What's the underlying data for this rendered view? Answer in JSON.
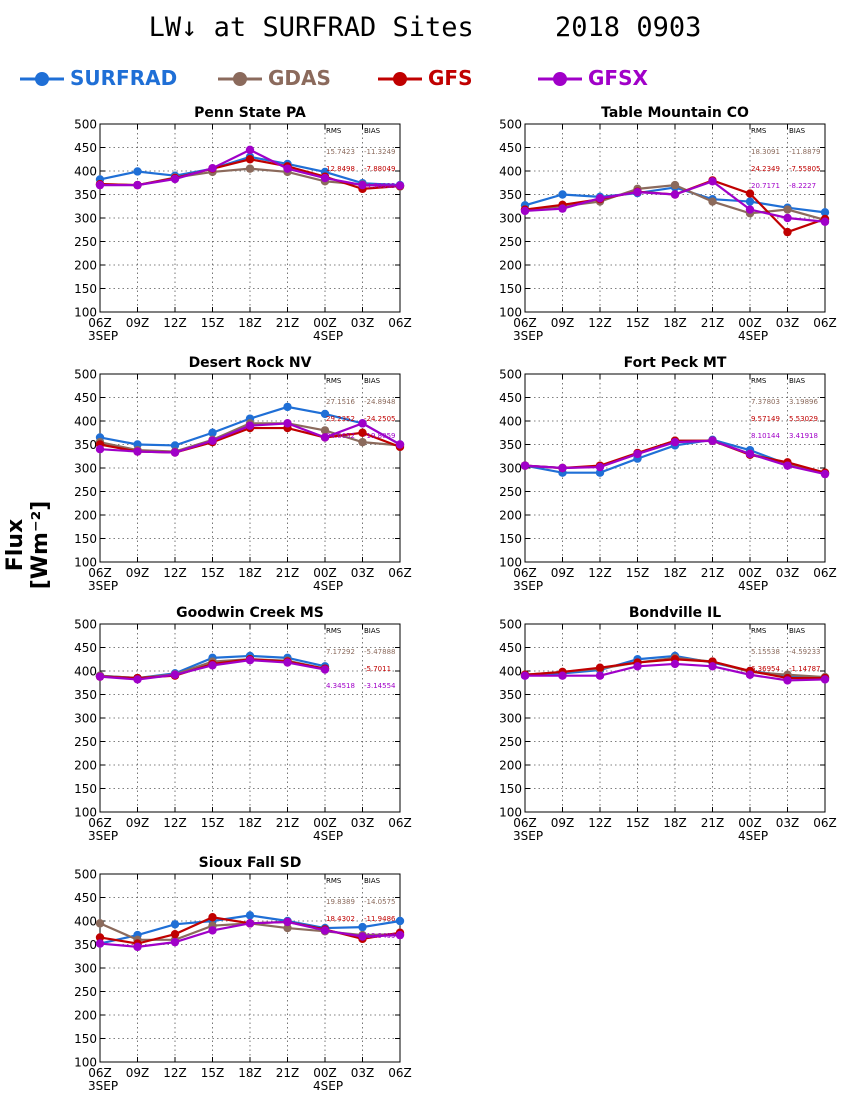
{
  "title": "LW↓ at SURFRAD Sites     2018 0903",
  "ylabel": "Flux [Wm⁻²]",
  "legend": [
    {
      "name": "SURFRAD",
      "color": "#1f6fd6"
    },
    {
      "name": "GDAS",
      "color": "#8b6a5c"
    },
    {
      "name": "GFS",
      "color": "#c00000"
    },
    {
      "name": "GFSX",
      "color": "#a000c8"
    }
  ],
  "chart_data": [
    {
      "type": "line",
      "title": "Penn State PA",
      "x": [
        "06Z",
        "09Z",
        "12Z",
        "15Z",
        "18Z",
        "21Z",
        "00Z",
        "03Z",
        "06Z"
      ],
      "xsublabels": [
        "3SEP",
        "",
        "",
        "",
        "",
        "",
        "4SEP",
        "",
        ""
      ],
      "ylim": [
        100,
        500
      ],
      "yticks": [
        100,
        150,
        200,
        250,
        300,
        350,
        400,
        450,
        500
      ],
      "grid": true,
      "series": [
        {
          "name": "SURFRAD",
          "values": [
            382,
            399,
            390,
            405,
            430,
            415,
            398,
            374,
            370
          ]
        },
        {
          "name": "GDAS",
          "values": [
            372,
            370,
            386,
            398,
            405,
            398,
            378,
            371,
            367
          ]
        },
        {
          "name": "GFS",
          "values": [
            372,
            370,
            385,
            405,
            425,
            410,
            388,
            362,
            368
          ]
        },
        {
          "name": "GFSX",
          "values": [
            370,
            370,
            383,
            406,
            445,
            405,
            385,
            370,
            369
          ]
        }
      ],
      "stats": {
        "headers": [
          "RMS",
          "BIAS"
        ],
        "rows": [
          [
            "15.7423",
            "-11.3249"
          ],
          [
            "12.8498",
            "-7.88049"
          ],
          [
            "",
            "-4.78935"
          ]
        ]
      }
    },
    {
      "type": "line",
      "title": "Table Mountain CO",
      "x": [
        "06Z",
        "09Z",
        "12Z",
        "15Z",
        "18Z",
        "21Z",
        "00Z",
        "03Z",
        "06Z"
      ],
      "xsublabels": [
        "3SEP",
        "",
        "",
        "",
        "",
        "",
        "4SEP",
        "",
        ""
      ],
      "ylim": [
        100,
        500
      ],
      "yticks": [
        100,
        150,
        200,
        250,
        300,
        350,
        400,
        450,
        500
      ],
      "grid": true,
      "series": [
        {
          "name": "SURFRAD",
          "values": [
            327,
            350,
            345,
            353,
            365,
            340,
            335,
            322,
            312
          ]
        },
        {
          "name": "GDAS",
          "values": [
            318,
            325,
            335,
            362,
            370,
            335,
            310,
            318,
            296
          ]
        },
        {
          "name": "GFS",
          "values": [
            318,
            328,
            340,
            356,
            350,
            380,
            352,
            270,
            298
          ]
        },
        {
          "name": "GFSX",
          "values": [
            315,
            320,
            342,
            355,
            350,
            378,
            318,
            300,
            292
          ]
        }
      ],
      "stats": {
        "headers": [
          "RMS",
          "BIAS"
        ],
        "rows": [
          [
            "18.3091",
            "-11.8879"
          ],
          [
            "24.2349",
            "-7.55805"
          ],
          [
            "20.7171",
            "-8.2227"
          ]
        ]
      }
    },
    {
      "type": "line",
      "title": "Desert Rock NV",
      "x": [
        "06Z",
        "09Z",
        "12Z",
        "15Z",
        "18Z",
        "21Z",
        "00Z",
        "03Z",
        "06Z"
      ],
      "xsublabels": [
        "3SEP",
        "",
        "",
        "",
        "",
        "",
        "4SEP",
        "",
        ""
      ],
      "ylim": [
        100,
        500
      ],
      "yticks": [
        100,
        150,
        200,
        250,
        300,
        350,
        400,
        450,
        500
      ],
      "grid": true,
      "series": [
        {
          "name": "SURFRAD",
          "values": [
            365,
            350,
            348,
            375,
            405,
            430,
            415,
            395,
            350
          ]
        },
        {
          "name": "GDAS",
          "values": [
            355,
            338,
            335,
            360,
            395,
            395,
            380,
            355,
            348
          ]
        },
        {
          "name": "GFS",
          "values": [
            350,
            335,
            333,
            355,
            385,
            385,
            365,
            375,
            345
          ]
        },
        {
          "name": "GFSX",
          "values": [
            340,
            335,
            333,
            358,
            390,
            395,
            365,
            395,
            350
          ]
        }
      ],
      "stats": {
        "headers": [
          "RMS",
          "BIAS"
        ],
        "rows": [
          [
            "27.1516",
            "-24.8948"
          ],
          [
            "29.2352",
            "-24.2505"
          ],
          [
            "24.6652",
            "-19.8059"
          ]
        ]
      }
    },
    {
      "type": "line",
      "title": "Fort Peck MT",
      "x": [
        "06Z",
        "09Z",
        "12Z",
        "15Z",
        "18Z",
        "21Z",
        "00Z",
        "03Z",
        "06Z"
      ],
      "xsublabels": [
        "3SEP",
        "",
        "",
        "",
        "",
        "",
        "4SEP",
        "",
        ""
      ],
      "ylim": [
        100,
        500
      ],
      "yticks": [
        100,
        150,
        200,
        250,
        300,
        350,
        400,
        450,
        500
      ],
      "grid": true,
      "series": [
        {
          "name": "SURFRAD",
          "values": [
            305,
            290,
            290,
            320,
            348,
            360,
            338,
            308,
            288
          ]
        },
        {
          "name": "GDAS",
          "values": [
            305,
            300,
            303,
            330,
            358,
            358,
            330,
            310,
            290
          ]
        },
        {
          "name": "GFS",
          "values": [
            305,
            300,
            305,
            332,
            358,
            358,
            328,
            312,
            290
          ]
        },
        {
          "name": "GFSX",
          "values": [
            305,
            300,
            302,
            330,
            355,
            358,
            330,
            305,
            287
          ]
        }
      ],
      "stats": {
        "headers": [
          "RMS",
          "BIAS"
        ],
        "rows": [
          [
            "7.37803",
            "3.19896"
          ],
          [
            "9.57149",
            "5.53029"
          ],
          [
            "8.10144",
            "3.41918"
          ]
        ]
      }
    },
    {
      "type": "line",
      "title": "Goodwin Creek MS",
      "x": [
        "06Z",
        "09Z",
        "12Z",
        "15Z",
        "18Z",
        "21Z",
        "00Z",
        "03Z",
        "06Z"
      ],
      "xsublabels": [
        "3SEP",
        "",
        "",
        "",
        "",
        "",
        "4SEP",
        "",
        ""
      ],
      "ylim": [
        100,
        500
      ],
      "yticks": [
        100,
        150,
        200,
        250,
        300,
        350,
        400,
        450,
        500
      ],
      "grid": true,
      "series": [
        {
          "name": "SURFRAD",
          "values": [
            390,
            385,
            395,
            428,
            432,
            428,
            410,
            null,
            null
          ]
        },
        {
          "name": "GDAS",
          "values": [
            390,
            385,
            393,
            420,
            425,
            422,
            405,
            null,
            null
          ]
        },
        {
          "name": "GFS",
          "values": [
            388,
            385,
            390,
            415,
            425,
            420,
            405,
            null,
            null
          ]
        },
        {
          "name": "GFSX",
          "values": [
            388,
            382,
            392,
            412,
            423,
            418,
            403,
            null,
            null
          ]
        }
      ],
      "stats": {
        "headers": [
          "RMS",
          "BIAS"
        ],
        "rows": [
          [
            "7.17292",
            "-5.47888"
          ],
          [
            "",
            "-5.7011"
          ],
          [
            "4.34518",
            "-3.14554"
          ]
        ]
      }
    },
    {
      "type": "line",
      "title": "Bondville IL",
      "x": [
        "06Z",
        "09Z",
        "12Z",
        "15Z",
        "18Z",
        "21Z",
        "00Z",
        "03Z",
        "06Z"
      ],
      "xsublabels": [
        "3SEP",
        "",
        "",
        "",
        "",
        "",
        "4SEP",
        "",
        ""
      ],
      "ylim": [
        100,
        500
      ],
      "yticks": [
        100,
        150,
        200,
        250,
        300,
        350,
        400,
        450,
        500
      ],
      "grid": true,
      "series": [
        {
          "name": "SURFRAD",
          "values": [
            390,
            395,
            402,
            425,
            432,
            418,
            400,
            390,
            385
          ]
        },
        {
          "name": "GDAS",
          "values": [
            392,
            398,
            405,
            418,
            428,
            420,
            398,
            392,
            387
          ]
        },
        {
          "name": "GFS",
          "values": [
            392,
            398,
            407,
            418,
            425,
            420,
            400,
            385,
            385
          ]
        },
        {
          "name": "GFSX",
          "values": [
            390,
            390,
            390,
            410,
            415,
            410,
            392,
            380,
            382
          ]
        }
      ],
      "stats": {
        "headers": [
          "RMS",
          "BIAS"
        ],
        "rows": [
          [
            "5.15538",
            "-4.59233"
          ],
          [
            "6.36954",
            "-1.14787"
          ],
          [
            "",
            ""
          ]
        ]
      }
    },
    {
      "type": "line",
      "title": "Sioux Fall SD",
      "x": [
        "06Z",
        "09Z",
        "12Z",
        "15Z",
        "18Z",
        "21Z",
        "00Z",
        "03Z",
        "06Z"
      ],
      "xsublabels": [
        "3SEP",
        "",
        "",
        "",
        "",
        "",
        "4SEP",
        "",
        ""
      ],
      "ylim": [
        100,
        500
      ],
      "yticks": [
        100,
        150,
        200,
        250,
        300,
        350,
        400,
        450,
        500
      ],
      "grid": true,
      "series": [
        {
          "name": "SURFRAD",
          "values": [
            352,
            370,
            393,
            400,
            412,
            400,
            385,
            387,
            400
          ]
        },
        {
          "name": "GDAS",
          "values": [
            395,
            360,
            360,
            390,
            395,
            385,
            378,
            370,
            372
          ]
        },
        {
          "name": "GFS",
          "values": [
            365,
            352,
            372,
            408,
            395,
            398,
            382,
            362,
            375
          ]
        },
        {
          "name": "GFSX",
          "values": [
            352,
            345,
            355,
            380,
            395,
            398,
            380,
            367,
            370
          ]
        }
      ],
      "stats": {
        "headers": [
          "RMS",
          "BIAS"
        ],
        "rows": [
          [
            "19.8389",
            "-14.0575"
          ],
          [
            "18.4302",
            "-11.9486"
          ],
          [
            "",
            "-13.9499"
          ]
        ]
      }
    }
  ]
}
